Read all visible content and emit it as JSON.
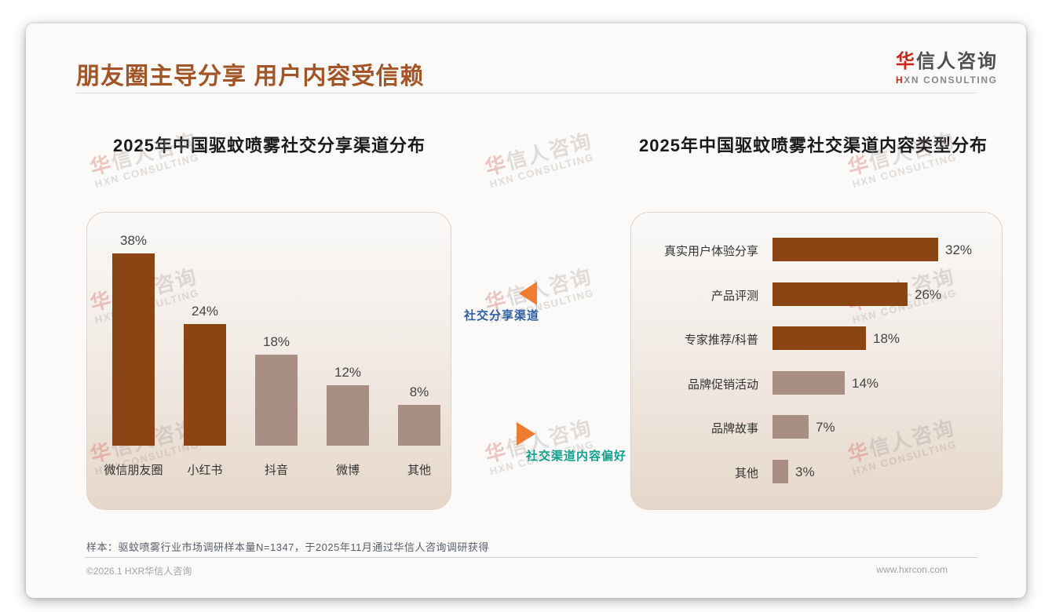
{
  "slide": {
    "title": "朋友圈主导分享 用户内容受信赖",
    "logo": {
      "cn_first": "华",
      "cn_rest": "信人咨询",
      "en_first": "H",
      "en_rest": "XN CONSULTING"
    },
    "watermark": {
      "cn_first": "华",
      "cn_rest": "信人咨询",
      "en": "HXN CONSULTING"
    },
    "footnote": "样本：驱蚊喷雾行业市场调研样本量N=1347，于2025年11月通过华信人咨询调研获得",
    "footer_left": "©2026.1 HXR华信人咨询",
    "footer_right": "www.hxrcon.com"
  },
  "annotations": {
    "left_arrow_label": "社交分享渠道",
    "right_arrow_label": "社交渠道内容偏好"
  },
  "colors": {
    "title_brown": "#A35527",
    "bar_dark": "#8B4514",
    "bar_light": "#A98E84",
    "arrow_orange": "#ED7D31",
    "label_blue": "#2E5FA3",
    "label_teal": "#12A18D",
    "logo_red": "#C8281E"
  },
  "chart_data": [
    {
      "type": "bar",
      "orientation": "vertical",
      "title": "2025年中国驱蚊喷雾社交分享渠道分布",
      "categories": [
        "微信朋友圈",
        "小红书",
        "抖音",
        "微博",
        "其他"
      ],
      "values": [
        38,
        24,
        18,
        12,
        8
      ],
      "value_labels": [
        "38%",
        "24%",
        "18%",
        "12%",
        "8%"
      ],
      "highlight_count": 2,
      "ylim": [
        0,
        40
      ],
      "grid": false,
      "legend": false
    },
    {
      "type": "bar",
      "orientation": "horizontal",
      "title": "2025年中国驱蚊喷雾社交渠道内容类型分布",
      "categories": [
        "真实用户体验分享",
        "产品评测",
        "专家推荐/科普",
        "品牌促销活动",
        "品牌故事",
        "其他"
      ],
      "values": [
        32,
        26,
        18,
        14,
        7,
        3
      ],
      "value_labels": [
        "32%",
        "26%",
        "18%",
        "14%",
        "7%",
        "3%"
      ],
      "highlight_count": 3,
      "xlim": [
        0,
        35
      ],
      "grid": false,
      "legend": false
    }
  ]
}
